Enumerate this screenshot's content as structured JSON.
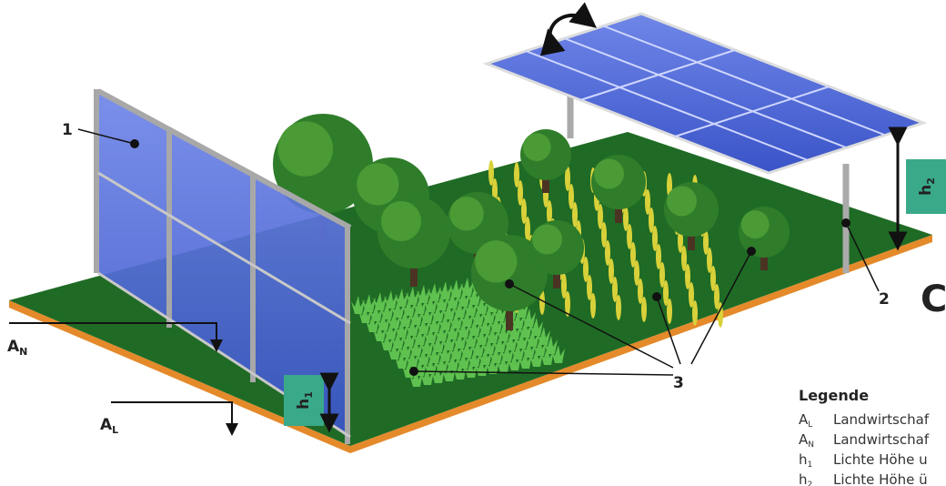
{
  "labels": {
    "panel": "1",
    "support": "2",
    "crops": "3",
    "variant": "C"
  },
  "symbols": {
    "a_n": {
      "main": "A",
      "sub": "N"
    },
    "a_l": {
      "main": "A",
      "sub": "L"
    },
    "h_1": {
      "main": "h",
      "sub": "1"
    },
    "h_2": {
      "main": "h",
      "sub": "2"
    }
  },
  "legend": {
    "title": "Legende",
    "items": [
      {
        "main": "A",
        "sub": "L",
        "text": "Landwirtschaf"
      },
      {
        "main": "A",
        "sub": "N",
        "text": "Landwirtschaf"
      },
      {
        "main": "h",
        "sub": "1",
        "text": "Lichte Höhe u"
      },
      {
        "main": "h",
        "sub": "2",
        "text": "Lichte Höhe ü"
      }
    ]
  }
}
